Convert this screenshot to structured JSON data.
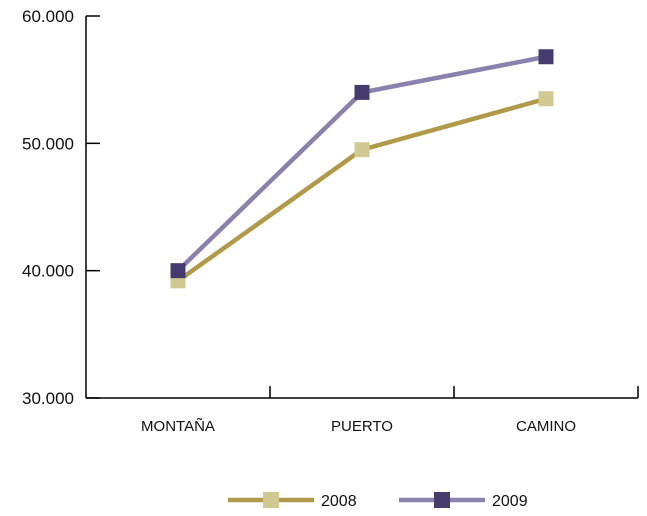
{
  "chart_data": {
    "type": "line",
    "categories": [
      "MONTAÑA",
      "PUERTO",
      "CAMINO"
    ],
    "series": [
      {
        "name": "2008",
        "values": [
          39200,
          49500,
          53500
        ],
        "line_color": "#b09a4a",
        "marker_color": "#d2c891"
      },
      {
        "name": "2009",
        "values": [
          40000,
          54000,
          56800
        ],
        "line_color": "#8a82ad",
        "marker_color": "#463a6e"
      }
    ],
    "ylim": [
      30000,
      60000
    ],
    "yticks": [
      30000,
      40000,
      50000,
      60000
    ],
    "ytick_labels": [
      "30.000",
      "40.000",
      "50.000",
      "60.000"
    ],
    "grid": false,
    "legend_position": "bottom"
  }
}
